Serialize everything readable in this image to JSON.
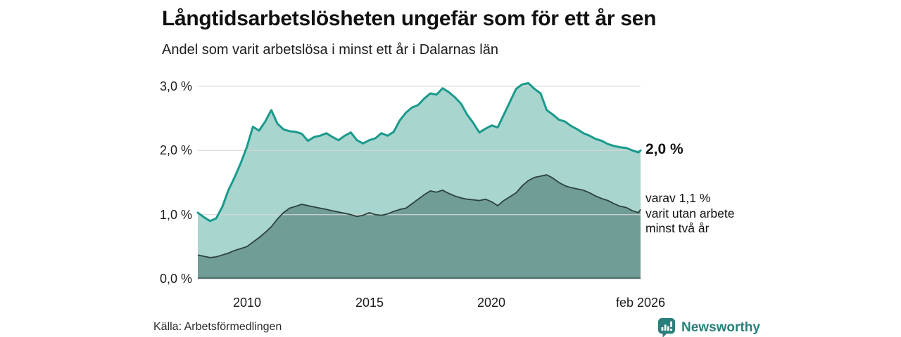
{
  "header": {
    "title": "Långtidsarbetslösheten ungefär som för ett år sen",
    "subtitle": "Andel som varit arbetslösa i minst ett år i Dalarnas län"
  },
  "annotations": {
    "end_value": "2,0 %",
    "secondary": "varav 1,1 %\nvarit utan arbete\nminst två år"
  },
  "footer": {
    "source": "Källa: Arbetsförmedlingen",
    "brand": "Newsworthy"
  },
  "colors": {
    "line_1year": "#1a9a8c",
    "fill_1year": "#a8d5ce",
    "line_2year": "#2d423e",
    "fill_2year": "#709d96",
    "gridline": "#d7d7d7",
    "baseline": "#4f726c",
    "brand_teal": "#2a807c",
    "text": "#111111"
  },
  "chart_data": {
    "type": "area",
    "title": "Långtidsarbetslösheten ungefär som för ett år sen",
    "subtitle": "Andel som varit arbetslösa i minst ett år i Dalarnas län",
    "ylabel": "",
    "xlabel": "",
    "grid": true,
    "legend_position": "direct-labels-right",
    "x_range": [
      2008.0,
      2026.083
    ],
    "ylim": [
      0,
      3.142
    ],
    "x": [
      2008.0,
      2008.25,
      2008.5,
      2008.75,
      2009.0,
      2009.25,
      2009.5,
      2009.75,
      2010.0,
      2010.25,
      2010.5,
      2010.75,
      2011.0,
      2011.25,
      2011.5,
      2011.75,
      2012.0,
      2012.25,
      2012.5,
      2012.75,
      2013.0,
      2013.25,
      2013.5,
      2013.75,
      2014.0,
      2014.25,
      2014.5,
      2014.75,
      2015.0,
      2015.25,
      2015.5,
      2015.75,
      2016.0,
      2016.25,
      2016.5,
      2016.75,
      2017.0,
      2017.25,
      2017.5,
      2017.75,
      2018.0,
      2018.25,
      2018.5,
      2018.75,
      2019.0,
      2019.25,
      2019.5,
      2019.75,
      2020.0,
      2020.25,
      2020.5,
      2020.75,
      2021.0,
      2021.25,
      2021.5,
      2021.75,
      2022.0,
      2022.25,
      2022.5,
      2022.75,
      2023.0,
      2023.25,
      2023.5,
      2023.75,
      2024.0,
      2024.25,
      2024.5,
      2024.75,
      2025.0,
      2025.25,
      2025.5,
      2025.75,
      2026.0,
      2026.083
    ],
    "series": [
      {
        "name": "Andel arbetslösa minst ett år",
        "end_label": "2,0 %",
        "line_color": "#1a9a8c",
        "fill_color": "#a8d5ce",
        "values": [
          1.03,
          0.96,
          0.9,
          0.94,
          1.12,
          1.38,
          1.58,
          1.8,
          2.05,
          2.37,
          2.31,
          2.45,
          2.63,
          2.42,
          2.33,
          2.3,
          2.29,
          2.26,
          2.15,
          2.21,
          2.23,
          2.27,
          2.21,
          2.16,
          2.23,
          2.28,
          2.16,
          2.11,
          2.16,
          2.19,
          2.27,
          2.23,
          2.29,
          2.47,
          2.59,
          2.67,
          2.71,
          2.81,
          2.89,
          2.87,
          2.97,
          2.91,
          2.83,
          2.73,
          2.56,
          2.43,
          2.28,
          2.34,
          2.39,
          2.36,
          2.56,
          2.76,
          2.96,
          3.03,
          3.05,
          2.96,
          2.89,
          2.63,
          2.56,
          2.48,
          2.45,
          2.38,
          2.33,
          2.27,
          2.23,
          2.18,
          2.15,
          2.1,
          2.07,
          2.05,
          2.04,
          2.0,
          1.97,
          2.0
        ]
      },
      {
        "name": "varav varit utan arbete minst två år",
        "end_label": "varav 1,1 % varit utan arbete minst två år",
        "line_color": "#2d423e",
        "fill_color": "#709d96",
        "values": [
          0.37,
          0.35,
          0.33,
          0.34,
          0.37,
          0.4,
          0.44,
          0.47,
          0.5,
          0.57,
          0.64,
          0.72,
          0.81,
          0.93,
          1.03,
          1.1,
          1.13,
          1.16,
          1.14,
          1.12,
          1.1,
          1.08,
          1.06,
          1.04,
          1.02,
          1.0,
          0.97,
          0.99,
          1.03,
          1.0,
          0.99,
          1.01,
          1.05,
          1.08,
          1.1,
          1.17,
          1.24,
          1.31,
          1.37,
          1.35,
          1.38,
          1.33,
          1.29,
          1.26,
          1.24,
          1.23,
          1.22,
          1.24,
          1.2,
          1.14,
          1.22,
          1.28,
          1.34,
          1.45,
          1.53,
          1.58,
          1.6,
          1.62,
          1.57,
          1.5,
          1.45,
          1.42,
          1.4,
          1.38,
          1.34,
          1.29,
          1.25,
          1.22,
          1.17,
          1.13,
          1.11,
          1.06,
          1.03,
          1.08
        ]
      }
    ],
    "xticks": [
      {
        "t": 2010,
        "label": "2010"
      },
      {
        "t": 2015,
        "label": "2015"
      },
      {
        "t": 2020,
        "label": "2020"
      },
      {
        "t": 2026.083,
        "label": "feb 2026"
      }
    ],
    "yticks": [
      {
        "v": 0,
        "label": "0,0 %"
      },
      {
        "v": 1,
        "label": "1,0 %"
      },
      {
        "v": 2,
        "label": "2,0 %"
      },
      {
        "v": 3,
        "label": "3,0 %"
      }
    ]
  }
}
